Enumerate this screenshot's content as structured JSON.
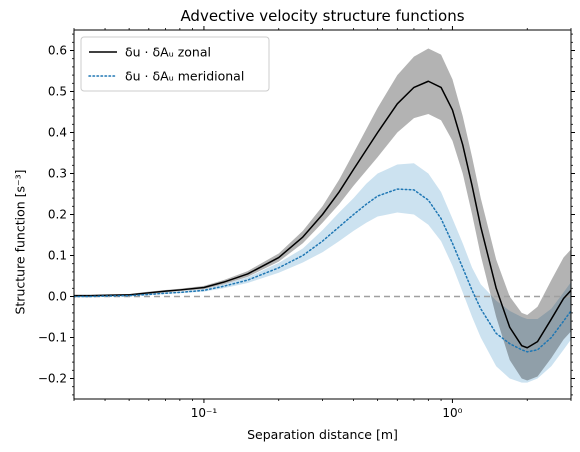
{
  "chart_data": {
    "type": "line",
    "title": "Advective velocity structure functions",
    "xlabel": "Separation distance [m]",
    "ylabel": "Structure function [s⁻³]",
    "xscale": "log",
    "xlim": [
      0.03,
      3.0
    ],
    "ylim": [
      -0.25,
      0.65
    ],
    "x_ticks": [
      0.1,
      1
    ],
    "x_tick_labels": [
      "10⁻¹",
      "10⁰"
    ],
    "y_ticks": [
      -0.2,
      -0.1,
      0.0,
      0.1,
      0.2,
      0.3,
      0.4,
      0.5,
      0.6
    ],
    "y_tick_labels": [
      "−0.2",
      "−0.1",
      "0.0",
      "0.1",
      "0.2",
      "0.3",
      "0.4",
      "0.5",
      "0.6"
    ],
    "reference_line": {
      "y": 0.0,
      "style": "dashed",
      "color": "#a0a0a0"
    },
    "legend": {
      "position": "top-left"
    },
    "series": [
      {
        "name": "δu · δAᵤ zonal",
        "color": "#000000",
        "linestyle": "solid",
        "band_color": "#a6a6a6",
        "x": [
          0.03,
          0.035,
          0.04,
          0.05,
          0.06,
          0.07,
          0.08,
          0.1,
          0.12,
          0.15,
          0.2,
          0.25,
          0.3,
          0.35,
          0.4,
          0.5,
          0.6,
          0.7,
          0.8,
          0.9,
          1.0,
          1.1,
          1.2,
          1.3,
          1.5,
          1.7,
          1.9,
          2.0,
          2.2,
          2.5,
          2.8,
          3.0
        ],
        "y": [
          0.002,
          0.002,
          0.003,
          0.004,
          0.009,
          0.013,
          0.016,
          0.022,
          0.035,
          0.055,
          0.095,
          0.145,
          0.2,
          0.255,
          0.31,
          0.4,
          0.47,
          0.51,
          0.525,
          0.51,
          0.455,
          0.37,
          0.27,
          0.17,
          0.02,
          -0.075,
          -0.12,
          -0.125,
          -0.11,
          -0.055,
          -0.005,
          0.015
        ],
        "lower": [
          0.0,
          0.0,
          0.001,
          0.002,
          0.006,
          0.01,
          0.013,
          0.018,
          0.03,
          0.048,
          0.085,
          0.13,
          0.18,
          0.225,
          0.27,
          0.34,
          0.4,
          0.435,
          0.445,
          0.43,
          0.38,
          0.3,
          0.2,
          0.1,
          -0.05,
          -0.155,
          -0.2,
          -0.205,
          -0.195,
          -0.15,
          -0.105,
          -0.085
        ],
        "upper": [
          0.004,
          0.004,
          0.005,
          0.006,
          0.012,
          0.016,
          0.019,
          0.026,
          0.04,
          0.062,
          0.105,
          0.16,
          0.22,
          0.285,
          0.35,
          0.46,
          0.54,
          0.585,
          0.605,
          0.59,
          0.53,
          0.44,
          0.34,
          0.24,
          0.09,
          0.0,
          -0.04,
          -0.045,
          -0.025,
          0.04,
          0.095,
          0.115
        ]
      },
      {
        "name": "δu · δAᵤ meridional",
        "color": "#1f77b4",
        "linestyle": "dotted",
        "band_color": "#b7d5ea",
        "x": [
          0.03,
          0.035,
          0.04,
          0.05,
          0.06,
          0.07,
          0.08,
          0.1,
          0.12,
          0.15,
          0.2,
          0.25,
          0.3,
          0.35,
          0.4,
          0.45,
          0.5,
          0.6,
          0.7,
          0.8,
          0.9,
          1.0,
          1.1,
          1.2,
          1.3,
          1.5,
          1.7,
          1.9,
          2.0,
          2.2,
          2.5,
          2.8,
          3.0
        ],
        "y": [
          0.0,
          0.0,
          0.001,
          0.002,
          0.005,
          0.008,
          0.01,
          0.015,
          0.025,
          0.04,
          0.07,
          0.1,
          0.135,
          0.17,
          0.2,
          0.225,
          0.245,
          0.262,
          0.26,
          0.235,
          0.19,
          0.13,
          0.07,
          0.015,
          -0.03,
          -0.09,
          -0.115,
          -0.13,
          -0.135,
          -0.13,
          -0.1,
          -0.06,
          -0.035
        ],
        "lower": [
          -0.002,
          -0.002,
          -0.001,
          0.0,
          0.003,
          0.006,
          0.008,
          0.012,
          0.02,
          0.033,
          0.058,
          0.083,
          0.108,
          0.135,
          0.16,
          0.18,
          0.195,
          0.205,
          0.2,
          0.175,
          0.135,
          0.075,
          0.01,
          -0.05,
          -0.1,
          -0.17,
          -0.2,
          -0.21,
          -0.21,
          -0.2,
          -0.17,
          -0.13,
          -0.105
        ],
        "upper": [
          0.002,
          0.002,
          0.003,
          0.004,
          0.007,
          0.01,
          0.012,
          0.018,
          0.03,
          0.047,
          0.082,
          0.117,
          0.162,
          0.205,
          0.24,
          0.275,
          0.3,
          0.322,
          0.325,
          0.3,
          0.255,
          0.19,
          0.13,
          0.07,
          0.03,
          -0.01,
          -0.035,
          -0.05,
          -0.055,
          -0.055,
          -0.03,
          0.01,
          0.035
        ]
      }
    ]
  }
}
